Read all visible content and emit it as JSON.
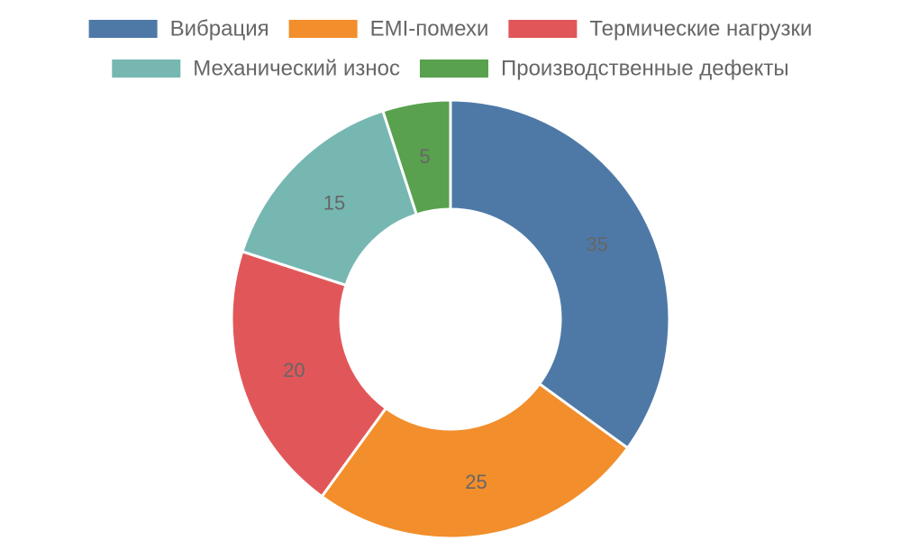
{
  "chart_data": {
    "type": "pie",
    "variant": "doughnut",
    "categories": [
      "Вибрация",
      "EMI-помехи",
      "Термические нагрузки",
      "Механический износ",
      "Производственные дефекты"
    ],
    "values": [
      35,
      25,
      20,
      15,
      5
    ],
    "colors": [
      "#4e79a7",
      "#f28e2b",
      "#e15759",
      "#76b7b2",
      "#59a14f"
    ],
    "legend_position": "top",
    "data_labels": true
  }
}
